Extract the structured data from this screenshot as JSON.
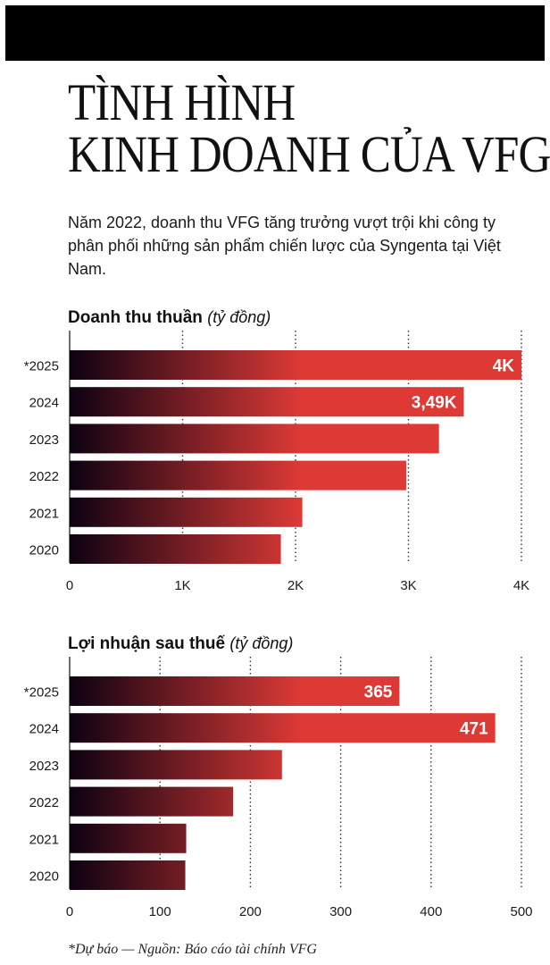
{
  "title": {
    "line1": "TÌNH HÌNH",
    "line2": "KINH DOANH CỦA VFG"
  },
  "lead": "Năm 2022, doanh thu VFG tăng trưởng vượt trội khi công ty phân phối những sản phẩm chiến lược của Syngenta tại Việt Nam.",
  "footnote": "*Dự báo — Nguồn: Báo cáo tài chính VFG",
  "colors": {
    "bar_start": "#0d0212",
    "bar_end": "#dd3a36",
    "label": "#ffffff"
  },
  "chart_data": [
    {
      "type": "bar",
      "orientation": "horizontal",
      "title": "Doanh thu thuần",
      "unit": "(tỷ đồng)",
      "categories": [
        "*2025",
        "2024",
        "2023",
        "2022",
        "2021",
        "2020"
      ],
      "values": [
        4000,
        3490,
        3270,
        2980,
        2060,
        1870
      ],
      "data_labels": [
        "4K",
        "3,49K",
        "",
        "",
        "",
        ""
      ],
      "xlim": [
        0,
        4000
      ],
      "ticks": [
        0,
        1000,
        2000,
        3000,
        4000
      ],
      "tick_labels": [
        "0",
        "1K",
        "2K",
        "3K",
        "4K"
      ],
      "grid": "dotted vertical"
    },
    {
      "type": "bar",
      "orientation": "horizontal",
      "title": "Lợi nhuận sau thuế",
      "unit": "(tỷ đồng)",
      "categories": [
        "*2025",
        "2024",
        "2023",
        "2022",
        "2021",
        "2020"
      ],
      "values": [
        365,
        471,
        235,
        181,
        129,
        128
      ],
      "data_labels": [
        "365",
        "471",
        "",
        "",
        "",
        ""
      ],
      "xlim": [
        0,
        500
      ],
      "ticks": [
        0,
        100,
        200,
        300,
        400,
        500
      ],
      "tick_labels": [
        "0",
        "100",
        "200",
        "300",
        "400",
        "500"
      ],
      "grid": "dotted vertical"
    }
  ]
}
